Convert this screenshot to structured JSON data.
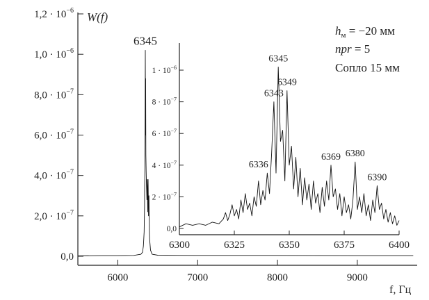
{
  "chart_data": [
    {
      "type": "line",
      "ylabel": "W(f)",
      "xlabel": "f,  Гц",
      "xlim": [
        5500,
        9750
      ],
      "ylim": [
        -8e-08,
        1.2e-06
      ],
      "x_ticks": [
        6000,
        7000,
        8000,
        9000
      ],
      "x_tick_labels": [
        "6000",
        "7000",
        "8000",
        "9000"
      ],
      "y_ticks": [
        0,
        2e-07,
        4e-07,
        6e-07,
        8e-07,
        1e-06,
        1.2e-06
      ],
      "y_tick_labels": [
        "0,0",
        "2,0 · 10",
        "4,0 · 10",
        "6,0 · 10",
        "8,0 · 10",
        "1,0 · 10",
        "1,2 · 10"
      ],
      "y_tick_exponents": [
        "",
        "−7",
        "−7",
        "−7",
        "−7",
        "−6",
        "−6"
      ],
      "peak_label": {
        "text": "6345",
        "x": 6345,
        "y": 1.02e-06
      },
      "legend_text": [
        "h",
        "м",
        " = −20 мм",
        "npr",
        " = 5",
        "Сопло 15 мм"
      ],
      "x": [
        5500,
        5800,
        6000,
        6200,
        6290,
        6310,
        6320,
        6325,
        6330,
        6335,
        6336,
        6340,
        6343,
        6345,
        6347,
        6349,
        6352,
        6355,
        6360,
        6365,
        6369,
        6375,
        6380,
        6385,
        6390,
        6395,
        6400,
        6410,
        6430,
        6500,
        7000,
        8000,
        9000,
        9700
      ],
      "values": [
        2e-09,
        3e-09,
        3e-09,
        4e-09,
        1e-08,
        2e-08,
        5e-08,
        8e-08,
        1.2e-07,
        2.5e-07,
        3.3e-07,
        4.5e-07,
        7.8e-07,
        1.02e-06,
        6e-07,
        8.8e-07,
        5e-07,
        4.2e-07,
        3.5e-07,
        2.8e-07,
        3.8e-07,
        2.2e-07,
        3.8e-07,
        2e-07,
        3e-07,
        1.2e-07,
        8e-08,
        3e-08,
        1e-08,
        5e-09,
        4e-09,
        4e-09,
        3e-09,
        3e-09
      ]
    },
    {
      "type": "line",
      "xlim": [
        6300,
        6400
      ],
      "ylim": [
        -8e-08,
        1.2e-06
      ],
      "x_ticks": [
        6300,
        6325,
        6350,
        6375,
        6400
      ],
      "x_tick_labels": [
        "6300",
        "6325",
        "6350",
        "6375",
        "6400"
      ],
      "y_ticks": [
        0,
        2e-07,
        4e-07,
        6e-07,
        8e-07,
        1e-06
      ],
      "y_tick_labels": [
        "0,0",
        "2 · 10",
        "4 · 10",
        "6 · 10",
        "8 · 10",
        "1 · 10"
      ],
      "y_tick_exponents": [
        "",
        "−7",
        "−7",
        "−7",
        "−7",
        "−6"
      ],
      "peak_labels": [
        {
          "text": "6343",
          "x": 6343,
          "y": 8e-07
        },
        {
          "text": "6345",
          "x": 6345,
          "y": 1.02e-06
        },
        {
          "text": "6349",
          "x": 6349,
          "y": 8.7e-07
        },
        {
          "text": "6336",
          "x": 6336,
          "y": 3.5e-07
        },
        {
          "text": "6369",
          "x": 6369,
          "y": 4e-07
        },
        {
          "text": "6380",
          "x": 6380,
          "y": 4.2e-07
        },
        {
          "text": "6390",
          "x": 6390,
          "y": 2.7e-07
        }
      ],
      "x": [
        6300,
        6303,
        6306,
        6309,
        6312,
        6315,
        6318,
        6320,
        6321,
        6322,
        6323,
        6324,
        6325,
        6326,
        6327,
        6328,
        6329,
        6330,
        6331,
        6332,
        6333,
        6334,
        6335,
        6336,
        6337,
        6338,
        6339,
        6340,
        6341,
        6342,
        6343,
        6344,
        6345,
        6346,
        6347,
        6348,
        6349,
        6350,
        6351,
        6352,
        6353,
        6354,
        6355,
        6356,
        6357,
        6358,
        6359,
        6360,
        6361,
        6362,
        6363,
        6364,
        6365,
        6366,
        6367,
        6368,
        6369,
        6370,
        6371,
        6372,
        6373,
        6374,
        6375,
        6376,
        6377,
        6378,
        6379,
        6380,
        6381,
        6382,
        6383,
        6384,
        6385,
        6386,
        6387,
        6388,
        6389,
        6390,
        6391,
        6392,
        6393,
        6394,
        6395,
        6396,
        6397,
        6398,
        6399,
        6400
      ],
      "values": [
        1e-08,
        3e-08,
        2e-08,
        3e-08,
        2e-08,
        4e-08,
        3e-08,
        6e-08,
        1e-07,
        5e-08,
        9e-08,
        1.5e-07,
        8e-08,
        1.2e-07,
        6e-08,
        1.8e-07,
        1e-07,
        2.2e-07,
        1.2e-07,
        1.6e-07,
        8e-08,
        2e-07,
        1.4e-07,
        3e-07,
        1.5e-07,
        2.4e-07,
        1.8e-07,
        3.5e-07,
        2.2e-07,
        4.8e-07,
        8e-07,
        3.5e-07,
        1.02e-06,
        5.5e-07,
        6.2e-07,
        3e-07,
        8.7e-07,
        4e-07,
        5.2e-07,
        2.5e-07,
        4.5e-07,
        2e-07,
        3.8e-07,
        1.5e-07,
        3.2e-07,
        1.8e-07,
        2.8e-07,
        1.2e-07,
        3e-07,
        1.6e-07,
        2.2e-07,
        1e-07,
        2.6e-07,
        1.4e-07,
        3e-07,
        1.8e-07,
        4e-07,
        2e-07,
        2.5e-07,
        1.2e-07,
        2.2e-07,
        8e-08,
        2e-07,
        1e-07,
        1.5e-07,
        6e-08,
        1.8e-07,
        4.2e-07,
        1.2e-07,
        2e-07,
        1e-07,
        2.2e-07,
        8e-08,
        1.5e-07,
        5e-08,
        1.8e-07,
        1e-07,
        2.7e-07,
        1.2e-07,
        1.6e-07,
        6e-08,
        1.2e-07,
        4e-08,
        1e-07,
        3e-08,
        8e-08,
        2e-08,
        5e-08
      ]
    }
  ]
}
